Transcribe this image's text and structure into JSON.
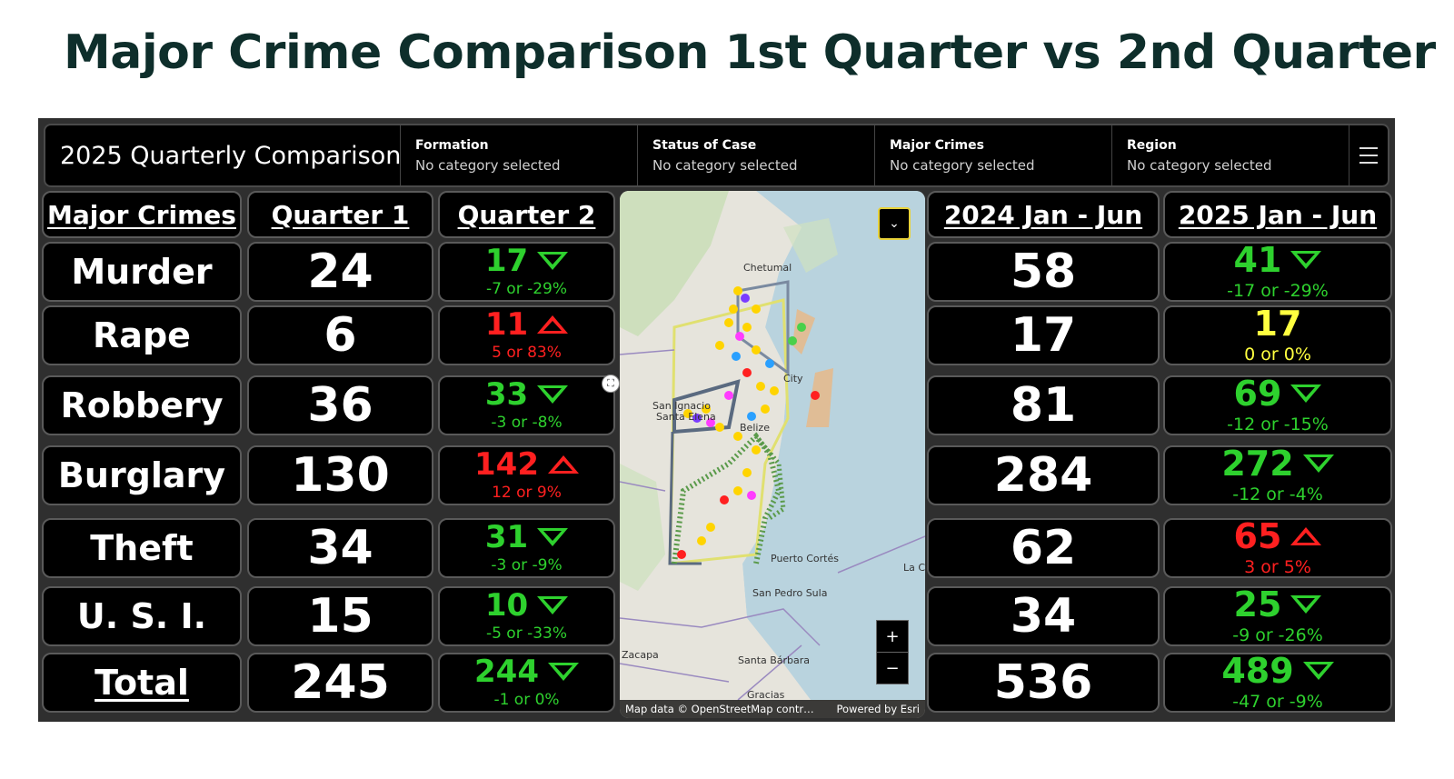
{
  "page_title": "Major Crime Comparison 1st Quarter vs 2nd Quarter",
  "header": {
    "title": "2025 Quarterly Comparison",
    "filters": [
      {
        "label": "Formation",
        "value": "No category selected"
      },
      {
        "label": "Status of Case",
        "value": "No category selected"
      },
      {
        "label": "Major Crimes",
        "value": "No category selected"
      },
      {
        "label": "Region",
        "value": "No category selected"
      }
    ],
    "menu_icon": "hamburger-icon"
  },
  "columns": {
    "crime": "Major Crimes",
    "q1": "Quarter 1",
    "q2": "Quarter 2",
    "h2024": "2024 Jan - Jun",
    "h2025": "2025 Jan - Jun"
  },
  "rows": [
    {
      "crime": "Murder",
      "q1": "24",
      "q2": "17",
      "q2_change": "-7 or -29%",
      "q2_trend": "down",
      "h2024": "58",
      "h2025": "41",
      "h2025_change": "-17 or -29%",
      "h2025_trend": "down"
    },
    {
      "crime": "Rape",
      "q1": "6",
      "q2": "11",
      "q2_change": "5 or 83%",
      "q2_trend": "up",
      "h2024": "17",
      "h2025": "17",
      "h2025_change": "0 or 0%",
      "h2025_trend": "flat"
    },
    {
      "crime": "Robbery",
      "q1": "36",
      "q2": "33",
      "q2_change": "-3 or -8%",
      "q2_trend": "down",
      "h2024": "81",
      "h2025": "69",
      "h2025_change": "-12 or -15%",
      "h2025_trend": "down"
    },
    {
      "crime": "Burglary",
      "q1": "130",
      "q2": "142",
      "q2_change": "12 or 9%",
      "q2_trend": "up",
      "h2024": "284",
      "h2025": "272",
      "h2025_change": "-12 or -4%",
      "h2025_trend": "down"
    },
    {
      "crime": "Theft",
      "q1": "34",
      "q2": "31",
      "q2_change": "-3 or -9%",
      "q2_trend": "down",
      "h2024": "62",
      "h2025": "65",
      "h2025_change": "3 or 5%",
      "h2025_trend": "up"
    },
    {
      "crime": "U. S. I.",
      "q1": "15",
      "q2": "10",
      "q2_change": "-5 or -33%",
      "q2_trend": "down",
      "h2024": "34",
      "h2025": "25",
      "h2025_change": "-9 or -26%",
      "h2025_trend": "down"
    },
    {
      "crime": "Total",
      "q1": "245",
      "q2": "244",
      "q2_change": "-1 or 0%",
      "q2_trend": "down",
      "h2024": "536",
      "h2025": "489",
      "h2025_change": "-47 or -9%",
      "h2025_trend": "down"
    }
  ],
  "colors": {
    "down": "#2ed12e",
    "up": "#ff2020",
    "flat": "#ffff40"
  },
  "map": {
    "places": [
      "Chetumal",
      "City",
      "San Ignacio",
      "Santa Elena",
      "Belize",
      "Puerto Cortés",
      "La C",
      "San Pedro Sula",
      "Zacapa",
      "Santa Bárbara",
      "Gracias"
    ],
    "attribution_left": "Map data © OpenStreetMap contr…",
    "attribution_right": "Powered by Esri",
    "zoom_in": "+",
    "zoom_out": "−",
    "collapse_icon": "chevron-double-down-icon"
  }
}
